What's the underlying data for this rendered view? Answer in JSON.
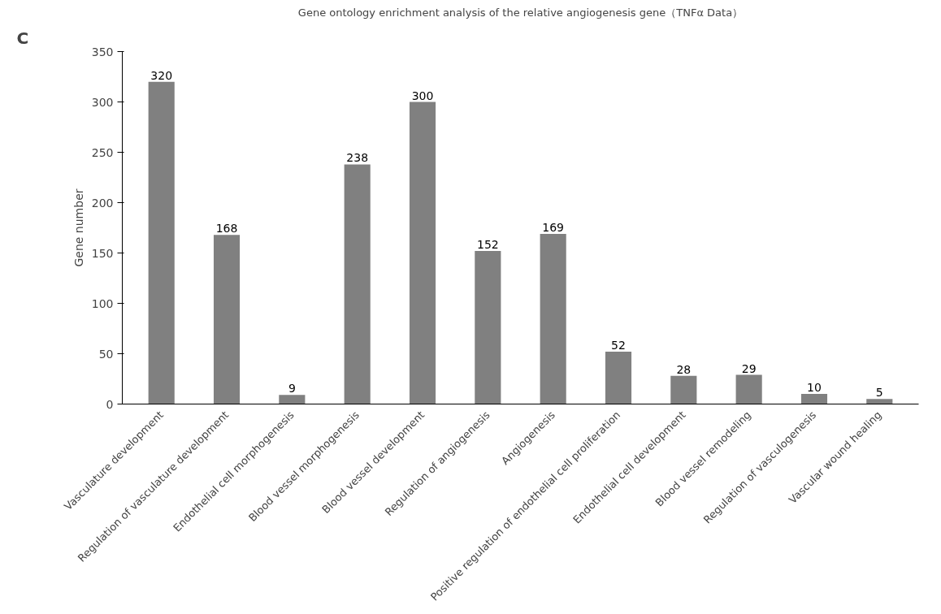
{
  "chart_data": {
    "type": "bar",
    "title": "Gene ontology enrichment analysis of the relative angiogenesis gene（TNFα Data）",
    "ylabel": "Gene number",
    "annotations": [
      "C"
    ],
    "categories": [
      "Vasculature development",
      "Regulation of vasculature development",
      "Endothelial cell morphogenesis",
      "Blood vessel morphogenesis",
      "Blood vessel development",
      "Regulation of angiogenesis",
      "Angiogenesis",
      "Positive regulation of endothelial cell proliferation",
      "Endothelial cell development",
      "Blood vessel remodeling",
      "Regulation of vasculogenesis",
      "Vascular wound healing"
    ],
    "values": [
      320,
      168,
      9,
      238,
      300,
      152,
      169,
      52,
      28,
      29,
      10,
      5
    ],
    "color": "#808080",
    "data_labels": true,
    "ylim": [
      0,
      350
    ],
    "yticks": [
      0,
      50,
      100,
      150,
      200,
      250,
      300,
      350
    ],
    "grid": false
  }
}
